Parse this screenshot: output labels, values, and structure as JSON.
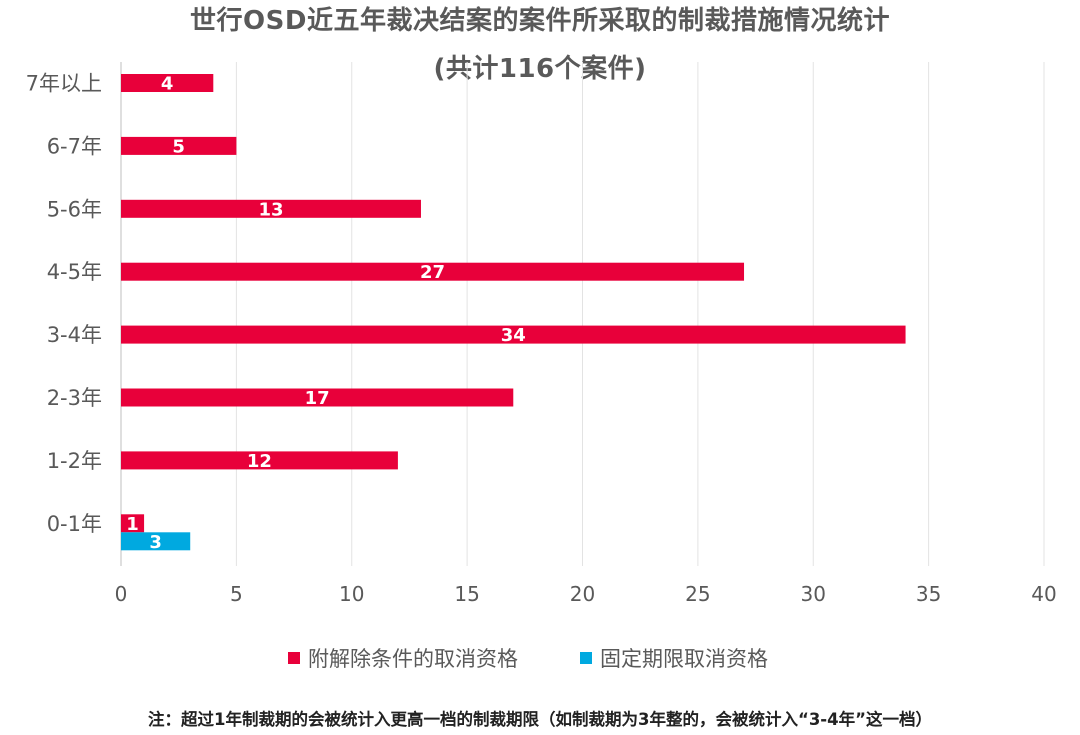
{
  "chart_data": {
    "type": "bar",
    "orientation": "horizontal",
    "title": "世行OSD近五年裁决结案的案件所采取的制裁措施情况统计",
    "subtitle": "(共计116个案件)",
    "categories": [
      "7年以上",
      "6-7年",
      "5-6年",
      "4-5年",
      "3-4年",
      "2-3年",
      "1-2年",
      "0-1年"
    ],
    "series": [
      {
        "name": "附解除条件的取消资格",
        "color": "#e8003a",
        "values": [
          4,
          5,
          13,
          27,
          34,
          17,
          12,
          1
        ]
      },
      {
        "name": "固定期限取消资格",
        "color": "#00a9e0",
        "values": [
          null,
          null,
          null,
          null,
          null,
          null,
          null,
          3
        ]
      }
    ],
    "xlim": [
      0,
      40
    ],
    "xticks": [
      0,
      5,
      10,
      15,
      20,
      25,
      30,
      35,
      40
    ],
    "grid": true,
    "legend_position": "bottom"
  },
  "footnote": "注：超过1年制裁期的会被统计入更高一档的制裁期限（如制裁期为3年整的，会被统计入“3-4年”这一档）"
}
